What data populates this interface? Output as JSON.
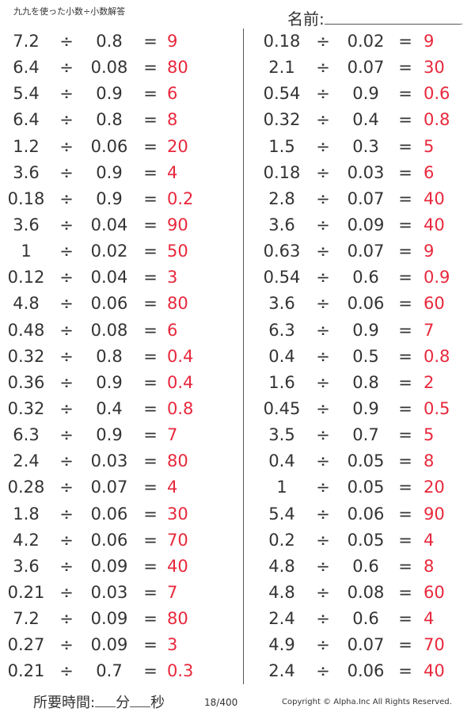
{
  "header": {
    "title": "九九を使った小数÷小数解答",
    "name_label": "名前:",
    "name_end": "."
  },
  "problems": {
    "left": [
      {
        "a": "7.2",
        "op": "÷",
        "b": "0.8",
        "eq": "=",
        "ans": "9"
      },
      {
        "a": "6.4",
        "op": "÷",
        "b": "0.08",
        "eq": "=",
        "ans": "80"
      },
      {
        "a": "5.4",
        "op": "÷",
        "b": "0.9",
        "eq": "=",
        "ans": "6"
      },
      {
        "a": "6.4",
        "op": "÷",
        "b": "0.8",
        "eq": "=",
        "ans": "8"
      },
      {
        "a": "1.2",
        "op": "÷",
        "b": "0.06",
        "eq": "=",
        "ans": "20"
      },
      {
        "a": "3.6",
        "op": "÷",
        "b": "0.9",
        "eq": "=",
        "ans": "4"
      },
      {
        "a": "0.18",
        "op": "÷",
        "b": "0.9",
        "eq": "=",
        "ans": "0.2"
      },
      {
        "a": "3.6",
        "op": "÷",
        "b": "0.04",
        "eq": "=",
        "ans": "90"
      },
      {
        "a": "1",
        "op": "÷",
        "b": "0.02",
        "eq": "=",
        "ans": "50"
      },
      {
        "a": "0.12",
        "op": "÷",
        "b": "0.04",
        "eq": "=",
        "ans": "3"
      },
      {
        "a": "4.8",
        "op": "÷",
        "b": "0.06",
        "eq": "=",
        "ans": "80"
      },
      {
        "a": "0.48",
        "op": "÷",
        "b": "0.08",
        "eq": "=",
        "ans": "6"
      },
      {
        "a": "0.32",
        "op": "÷",
        "b": "0.8",
        "eq": "=",
        "ans": "0.4"
      },
      {
        "a": "0.36",
        "op": "÷",
        "b": "0.9",
        "eq": "=",
        "ans": "0.4"
      },
      {
        "a": "0.32",
        "op": "÷",
        "b": "0.4",
        "eq": "=",
        "ans": "0.8"
      },
      {
        "a": "6.3",
        "op": "÷",
        "b": "0.9",
        "eq": "=",
        "ans": "7"
      },
      {
        "a": "2.4",
        "op": "÷",
        "b": "0.03",
        "eq": "=",
        "ans": "80"
      },
      {
        "a": "0.28",
        "op": "÷",
        "b": "0.07",
        "eq": "=",
        "ans": "4"
      },
      {
        "a": "1.8",
        "op": "÷",
        "b": "0.06",
        "eq": "=",
        "ans": "30"
      },
      {
        "a": "4.2",
        "op": "÷",
        "b": "0.06",
        "eq": "=",
        "ans": "70"
      },
      {
        "a": "3.6",
        "op": "÷",
        "b": "0.09",
        "eq": "=",
        "ans": "40"
      },
      {
        "a": "0.21",
        "op": "÷",
        "b": "0.03",
        "eq": "=",
        "ans": "7"
      },
      {
        "a": "7.2",
        "op": "÷",
        "b": "0.09",
        "eq": "=",
        "ans": "80"
      },
      {
        "a": "0.27",
        "op": "÷",
        "b": "0.09",
        "eq": "=",
        "ans": "3"
      },
      {
        "a": "0.21",
        "op": "÷",
        "b": "0.7",
        "eq": "=",
        "ans": "0.3"
      }
    ],
    "right": [
      {
        "a": "0.18",
        "op": "÷",
        "b": "0.02",
        "eq": "=",
        "ans": "9"
      },
      {
        "a": "2.1",
        "op": "÷",
        "b": "0.07",
        "eq": "=",
        "ans": "30"
      },
      {
        "a": "0.54",
        "op": "÷",
        "b": "0.9",
        "eq": "=",
        "ans": "0.6"
      },
      {
        "a": "0.32",
        "op": "÷",
        "b": "0.4",
        "eq": "=",
        "ans": "0.8"
      },
      {
        "a": "1.5",
        "op": "÷",
        "b": "0.3",
        "eq": "=",
        "ans": "5"
      },
      {
        "a": "0.18",
        "op": "÷",
        "b": "0.03",
        "eq": "=",
        "ans": "6"
      },
      {
        "a": "2.8",
        "op": "÷",
        "b": "0.07",
        "eq": "=",
        "ans": "40"
      },
      {
        "a": "3.6",
        "op": "÷",
        "b": "0.09",
        "eq": "=",
        "ans": "40"
      },
      {
        "a": "0.63",
        "op": "÷",
        "b": "0.07",
        "eq": "=",
        "ans": "9"
      },
      {
        "a": "0.54",
        "op": "÷",
        "b": "0.6",
        "eq": "=",
        "ans": "0.9"
      },
      {
        "a": "3.6",
        "op": "÷",
        "b": "0.06",
        "eq": "=",
        "ans": "60"
      },
      {
        "a": "6.3",
        "op": "÷",
        "b": "0.9",
        "eq": "=",
        "ans": "7"
      },
      {
        "a": "0.4",
        "op": "÷",
        "b": "0.5",
        "eq": "=",
        "ans": "0.8"
      },
      {
        "a": "1.6",
        "op": "÷",
        "b": "0.8",
        "eq": "=",
        "ans": "2"
      },
      {
        "a": "0.45",
        "op": "÷",
        "b": "0.9",
        "eq": "=",
        "ans": "0.5"
      },
      {
        "a": "3.5",
        "op": "÷",
        "b": "0.7",
        "eq": "=",
        "ans": "5"
      },
      {
        "a": "0.4",
        "op": "÷",
        "b": "0.05",
        "eq": "=",
        "ans": "8"
      },
      {
        "a": "1",
        "op": "÷",
        "b": "0.05",
        "eq": "=",
        "ans": "20"
      },
      {
        "a": "5.4",
        "op": "÷",
        "b": "0.06",
        "eq": "=",
        "ans": "90"
      },
      {
        "a": "0.2",
        "op": "÷",
        "b": "0.05",
        "eq": "=",
        "ans": "4"
      },
      {
        "a": "4.8",
        "op": "÷",
        "b": "0.6",
        "eq": "=",
        "ans": "8"
      },
      {
        "a": "4.8",
        "op": "÷",
        "b": "0.08",
        "eq": "=",
        "ans": "60"
      },
      {
        "a": "2.4",
        "op": "÷",
        "b": "0.6",
        "eq": "=",
        "ans": "4"
      },
      {
        "a": "4.9",
        "op": "÷",
        "b": "0.07",
        "eq": "=",
        "ans": "70"
      },
      {
        "a": "2.4",
        "op": "÷",
        "b": "0.06",
        "eq": "=",
        "ans": "40"
      }
    ]
  },
  "footer": {
    "time_label": "所要時間:",
    "minutes_label": "分",
    "seconds_label": "秒",
    "page": "18/400",
    "copyright": "Copyright © Alpha.Inc All Rights Reserved."
  },
  "colors": {
    "text": "#333333",
    "answer": "#e8283c"
  }
}
